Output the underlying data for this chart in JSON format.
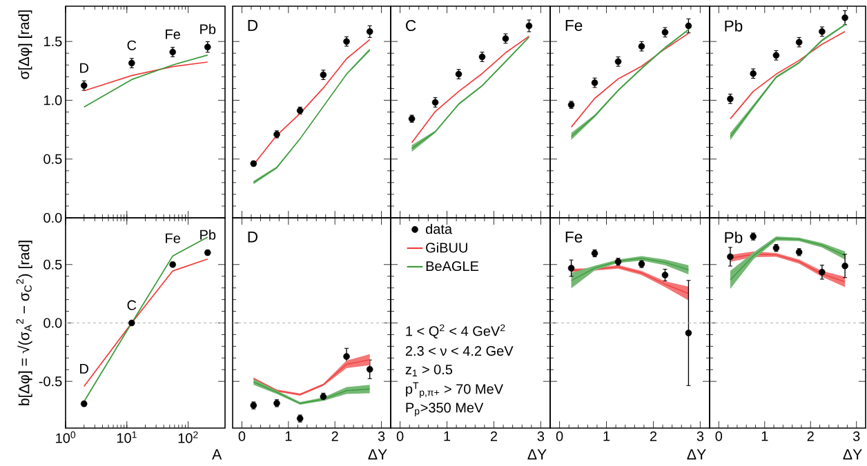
{
  "chart_data": [
    {
      "type": "line",
      "ylabel": "σ[Δφ]  [rad]",
      "x": [
        2,
        12,
        56,
        208
      ],
      "log": "x",
      "xlim": [
        1,
        400
      ],
      "xticks": [
        1,
        10,
        100
      ],
      "ylim": [
        0,
        1.8
      ],
      "yticks": [
        {
          "value": 0,
          "label": "0.0"
        },
        {
          "value": 0.5,
          "label": "0.5"
        },
        {
          "value": 1,
          "label": "1.0"
        },
        {
          "value": 1.5,
          "label": "1.5"
        }
      ],
      "tick_labels": "y",
      "annotations": [
        {
          "text": "D",
          "x": 2,
          "y": 1.125
        },
        {
          "text": "C",
          "x": 12,
          "y": 1.316
        },
        {
          "text": "Fe",
          "x": 56,
          "y": 1.41
        },
        {
          "text": "Pb",
          "x": 208,
          "y": 1.453
        }
      ],
      "series": [
        {
          "type": "scatter",
          "color": "#000000",
          "values": [
            1.125,
            1.316,
            1.41,
            1.453
          ],
          "errors": [
            0.04,
            0.04,
            0.04,
            0.045
          ]
        },
        {
          "type": "line",
          "color": "#f03c3c",
          "values": [
            1.08,
            1.21,
            1.286,
            1.325
          ]
        },
        {
          "type": "line",
          "color": "#3a9a3a",
          "values": [
            0.943,
            1.176,
            1.3,
            1.384
          ]
        }
      ]
    },
    {
      "type": "line",
      "title": "D",
      "x": [
        0.25,
        0.75,
        1.25,
        1.75,
        2.25,
        2.75
      ],
      "xlim": [
        -0.2,
        3.2
      ],
      "xticks": [
        0,
        1,
        2,
        3
      ],
      "ylim": [
        0,
        1.8
      ],
      "yticks": [
        0,
        0.5,
        1,
        1.5
      ],
      "tick_labels": false,
      "series": [
        {
          "type": "scatter",
          "color": "#000000",
          "values": [
            0.461,
            0.71,
            0.912,
            1.216,
            1.5,
            1.584
          ],
          "errors": [
            0.02,
            0.03,
            0.03,
            0.04,
            0.04,
            0.05
          ]
        },
        {
          "type": "line",
          "color": "#f03c3c",
          "values": [
            0.451,
            0.702,
            0.888,
            1.104,
            1.353,
            1.516
          ]
        },
        {
          "type": "line",
          "color": "#3a9a3a",
          "values": [
            0.3,
            0.428,
            0.672,
            0.947,
            1.222,
            1.43
          ],
          "lower": [
            0.286,
            0.418,
            0.665,
            0.94,
            1.215,
            1.418
          ],
          "upper": [
            0.314,
            0.437,
            0.68,
            0.955,
            1.23,
            1.441
          ]
        }
      ]
    },
    {
      "type": "line",
      "title": "C",
      "x": [
        0.25,
        0.75,
        1.25,
        1.75,
        2.25,
        2.75
      ],
      "xlim": [
        -0.2,
        3.2
      ],
      "xticks": [
        0,
        1,
        2,
        3
      ],
      "ylim": [
        0,
        1.8
      ],
      "yticks": [
        0,
        0.5,
        1,
        1.5
      ],
      "tick_labels": false,
      "series": [
        {
          "type": "scatter",
          "color": "#000000",
          "values": [
            0.843,
            0.982,
            1.222,
            1.369,
            1.525,
            1.633
          ],
          "errors": [
            0.03,
            0.04,
            0.04,
            0.04,
            0.04,
            0.05
          ]
        },
        {
          "type": "line",
          "color": "#f03c3c",
          "values": [
            0.639,
            0.904,
            1.075,
            1.227,
            1.404,
            1.545
          ]
        },
        {
          "type": "line",
          "color": "#3a9a3a",
          "values": [
            0.59,
            0.732,
            0.967,
            1.124,
            1.329,
            1.537
          ],
          "lower": [
            0.561,
            0.722,
            0.958,
            1.116,
            1.32,
            1.529
          ],
          "upper": [
            0.619,
            0.741,
            0.976,
            1.132,
            1.338,
            1.545
          ]
        }
      ]
    },
    {
      "type": "line",
      "title": "Fe",
      "x": [
        0.25,
        0.75,
        1.25,
        1.75,
        2.25,
        2.75
      ],
      "xlim": [
        -0.2,
        3.2
      ],
      "xticks": [
        0,
        1,
        2,
        3
      ],
      "ylim": [
        0,
        1.8
      ],
      "yticks": [
        0,
        0.5,
        1,
        1.5
      ],
      "tick_labels": false,
      "series": [
        {
          "type": "scatter",
          "color": "#000000",
          "values": [
            0.961,
            1.149,
            1.329,
            1.459,
            1.578,
            1.633
          ],
          "errors": [
            0.03,
            0.04,
            0.04,
            0.04,
            0.04,
            0.06
          ]
        },
        {
          "type": "line",
          "color": "#f03c3c",
          "values": [
            0.772,
            1.016,
            1.182,
            1.29,
            1.437,
            1.569
          ]
        },
        {
          "type": "line",
          "color": "#3a9a3a",
          "values": [
            0.692,
            0.866,
            1.084,
            1.271,
            1.447,
            1.601
          ],
          "lower": [
            0.663,
            0.855,
            1.075,
            1.262,
            1.438,
            1.594
          ],
          "upper": [
            0.722,
            0.878,
            1.094,
            1.28,
            1.456,
            1.608
          ]
        }
      ]
    },
    {
      "type": "line",
      "title": "Pb",
      "x": [
        0.25,
        0.75,
        1.25,
        1.75,
        2.25,
        2.75
      ],
      "xlim": [
        -0.2,
        3.2
      ],
      "xticks": [
        0,
        1,
        2,
        3
      ],
      "ylim": [
        0,
        1.8
      ],
      "yticks": [
        0,
        0.5,
        1,
        1.5
      ],
      "tick_labels": false,
      "series": [
        {
          "type": "scatter",
          "color": "#000000",
          "values": [
            1.012,
            1.227,
            1.382,
            1.494,
            1.584,
            1.702
          ],
          "errors": [
            0.04,
            0.04,
            0.04,
            0.04,
            0.04,
            0.06
          ]
        },
        {
          "type": "line",
          "color": "#f03c3c",
          "values": [
            0.842,
            1.075,
            1.222,
            1.339,
            1.476,
            1.584
          ]
        },
        {
          "type": "line",
          "color": "#3a9a3a",
          "values": [
            0.69,
            0.944,
            1.196,
            1.319,
            1.51,
            1.643
          ],
          "lower": [
            0.659,
            0.928,
            1.186,
            1.31,
            1.5,
            1.635
          ],
          "upper": [
            0.722,
            0.961,
            1.206,
            1.328,
            1.52,
            1.651
          ]
        }
      ]
    },
    {
      "type": "line",
      "xlabel": "A",
      "ylabel": "b[Δφ] = √(σ$_{A}$$^{2}$ − σ$_{C}$$^{2}$)  [rad]",
      "x": [
        2,
        12,
        56,
        208
      ],
      "log": "x",
      "xlim": [
        1,
        400
      ],
      "xticks": [
        {
          "value": 1,
          "label": "10$^{0}$"
        },
        {
          "value": 10,
          "label": "10$^{1}$"
        },
        {
          "value": 100,
          "label": "10$^{2}$"
        }
      ],
      "ylim": [
        -0.9,
        0.9
      ],
      "yticks": [
        {
          "value": -0.5,
          "label": "-0.5"
        },
        {
          "value": 0,
          "label": "0.0"
        },
        {
          "value": 0.5,
          "label": "0.5"
        }
      ],
      "ref_lines": [
        {
          "axis": "y",
          "value": 0,
          "color": "#aaaaaa",
          "line_style": "dashed"
        }
      ],
      "annotations": [
        {
          "text": "D",
          "x": 2,
          "y": -0.543
        },
        {
          "text": "C",
          "x": 12,
          "y": 0
        },
        {
          "text": "Fe",
          "x": 56,
          "y": 0.573
        },
        {
          "text": "Pb",
          "x": 208,
          "y": 0.602
        }
      ],
      "series": [
        {
          "type": "scatter",
          "color": "#000000",
          "values": [
            -0.692,
            0,
            0.5,
            0.602
          ],
          "errors": [
            0.02,
            0.01,
            0.02,
            0.02
          ]
        },
        {
          "type": "line",
          "color": "#f03c3c",
          "values": [
            -0.543,
            0,
            0.445,
            0.547
          ]
        },
        {
          "type": "line",
          "color": "#3a9a3a",
          "values": [
            -0.673,
            0,
            0.573,
            0.734
          ]
        }
      ]
    },
    {
      "type": "line",
      "title": "D",
      "xlabel": "ΔY",
      "x": [
        0.25,
        0.75,
        1.25,
        1.75,
        2.25,
        2.75
      ],
      "xlim": [
        -0.2,
        3.2
      ],
      "xticks": [
        0,
        1,
        2,
        3
      ],
      "ylim": [
        -0.9,
        0.9
      ],
      "yticks": [
        -0.5,
        0,
        0.5
      ],
      "tick_labels": "x",
      "legend": "right",
      "ref_lines": [
        {
          "axis": "y",
          "value": 0,
          "color": "#aaaaaa",
          "line_style": "dashed"
        }
      ],
      "series": [
        {
          "type": "scatter",
          "name": "data",
          "color": "#000000",
          "values": [
            -0.706,
            -0.687,
            -0.818,
            -0.631,
            -0.287,
            -0.397
          ],
          "errors": [
            0.03,
            0.03,
            0.03,
            0.03,
            0.07,
            0.08
          ]
        },
        {
          "type": "line",
          "name": "GiBUU",
          "color": "#f03c3c",
          "values": [
            -0.478,
            -0.579,
            -0.613,
            -0.529,
            -0.354,
            -0.315
          ],
          "lower": [
            -0.49,
            -0.589,
            -0.622,
            -0.539,
            -0.386,
            -0.362
          ],
          "upper": [
            -0.466,
            -0.569,
            -0.604,
            -0.519,
            -0.322,
            -0.267
          ]
        },
        {
          "type": "line",
          "name": "BeAGLE",
          "color": "#3a9a3a",
          "values": [
            -0.505,
            -0.593,
            -0.689,
            -0.653,
            -0.579,
            -0.566
          ],
          "lower": [
            -0.529,
            -0.608,
            -0.7,
            -0.667,
            -0.608,
            -0.602
          ],
          "upper": [
            -0.48,
            -0.578,
            -0.677,
            -0.638,
            -0.549,
            -0.529
          ]
        }
      ]
    },
    {
      "type": "line",
      "xlabel": "ΔY",
      "xlim": [
        -0.2,
        3.2
      ],
      "xticks": [
        0,
        1,
        2,
        3
      ],
      "ylim": [
        -0.9,
        0.9
      ],
      "yticks": [
        -0.5,
        0,
        0.5
      ],
      "tick_labels": "x",
      "annotations": [
        "1 < Q$^{2}$ < 4 GeV$^{2}$",
        "2.3 < ν < 4.2 GeV",
        "z$_{1}$ > 0.5",
        "p$^{T}$$_{p,π+}$ > 70 MeV",
        "P$_{p}$>350 MeV"
      ]
    },
    {
      "type": "line",
      "title": "Fe",
      "xlabel": "ΔY",
      "x": [
        0.25,
        0.75,
        1.25,
        1.75,
        2.25,
        2.75
      ],
      "xlim": [
        -0.2,
        3.2
      ],
      "xticks": [
        0,
        1,
        2,
        3
      ],
      "ylim": [
        -0.9,
        0.9
      ],
      "yticks": [
        -0.5,
        0,
        0.5
      ],
      "tick_labels": "x",
      "ref_lines": [
        {
          "axis": "y",
          "value": 0,
          "color": "#aaaaaa",
          "line_style": "dashed"
        }
      ],
      "series": [
        {
          "type": "line",
          "color": "#f03c3c",
          "values": [
            0.45,
            0.459,
            0.48,
            0.428,
            0.332,
            0.252
          ],
          "lower": [
            0.435,
            0.449,
            0.465,
            0.41,
            0.307,
            0.193
          ],
          "upper": [
            0.465,
            0.469,
            0.495,
            0.445,
            0.357,
            0.311
          ]
        },
        {
          "type": "line",
          "color": "#3a9a3a",
          "values": [
            0.363,
            0.47,
            0.529,
            0.554,
            0.519,
            0.455
          ],
          "lower": [
            0.297,
            0.45,
            0.514,
            0.534,
            0.494,
            0.416
          ],
          "upper": [
            0.429,
            0.49,
            0.543,
            0.573,
            0.543,
            0.494
          ]
        },
        {
          "type": "scatter",
          "color": "#000000",
          "values": [
            0.469,
            0.596,
            0.524,
            0.504,
            0.41,
            -0.086
          ],
          "errors": [
            0.07,
            0.03,
            0.03,
            0.03,
            0.05,
            0.45
          ]
        }
      ]
    },
    {
      "type": "line",
      "title": "Pb",
      "xlabel": "ΔY",
      "x": [
        0.25,
        0.75,
        1.25,
        1.75,
        2.25,
        2.75
      ],
      "xlim": [
        -0.2,
        3.2
      ],
      "xticks": [
        0,
        1,
        2,
        3
      ],
      "ylim": [
        -0.9,
        0.9
      ],
      "yticks": [
        -0.5,
        0,
        0.5
      ],
      "tick_labels": "x",
      "ref_lines": [
        {
          "axis": "y",
          "value": 0,
          "color": "#aaaaaa",
          "line_style": "dashed"
        }
      ],
      "series": [
        {
          "type": "line",
          "color": "#f03c3c",
          "values": [
            0.554,
            0.588,
            0.583,
            0.526,
            0.42,
            0.352
          ],
          "lower": [
            0.524,
            0.563,
            0.567,
            0.508,
            0.396,
            0.307
          ],
          "upper": [
            0.583,
            0.612,
            0.599,
            0.543,
            0.445,
            0.396
          ]
        },
        {
          "type": "line",
          "color": "#3a9a3a",
          "values": [
            0.369,
            0.573,
            0.723,
            0.716,
            0.666,
            0.578
          ],
          "lower": [
            0.292,
            0.543,
            0.705,
            0.701,
            0.646,
            0.543
          ],
          "upper": [
            0.445,
            0.602,
            0.74,
            0.73,
            0.685,
            0.612
          ]
        },
        {
          "type": "scatter",
          "color": "#000000",
          "values": [
            0.567,
            0.74,
            0.642,
            0.606,
            0.435,
            0.488
          ],
          "errors": [
            0.08,
            0.03,
            0.03,
            0.03,
            0.06,
            0.1
          ]
        }
      ]
    }
  ]
}
